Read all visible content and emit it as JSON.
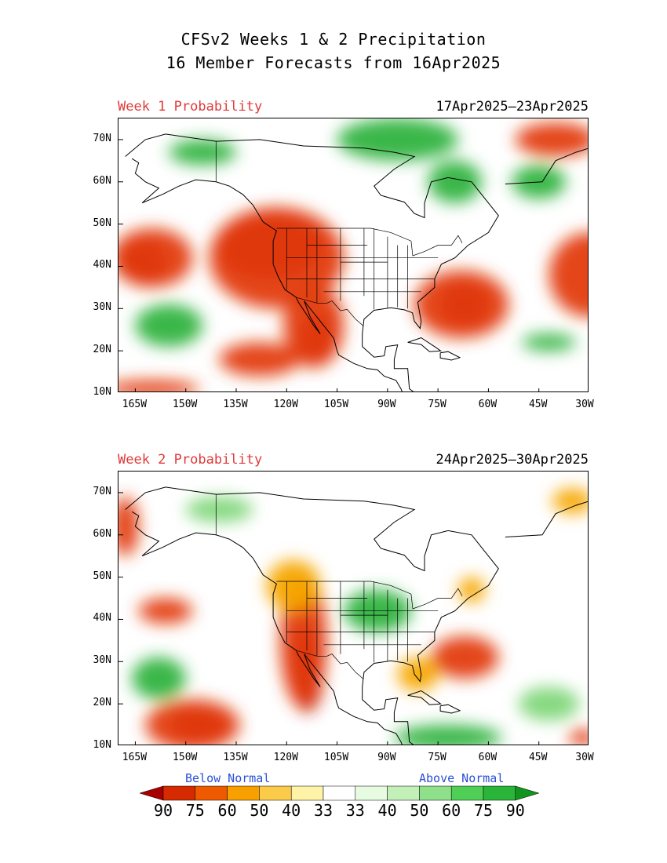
{
  "header": {
    "title_line1": "CFSv2 Weeks 1 & 2 Precipitation",
    "title_line2": "16 Member Forecasts from 16Apr2025"
  },
  "panels": [
    {
      "label": "Week 1 Probability",
      "dates": "17Apr2025—23Apr2025",
      "blobs": [
        {
          "c": "#b10000",
          "lon": -125,
          "lat": 45,
          "rx": 16,
          "ry": 8
        },
        {
          "c": "#e33c12",
          "lon": -123,
          "lat": 42,
          "rx": 20,
          "ry": 12
        },
        {
          "c": "#b10000",
          "lon": -163,
          "lat": 41,
          "rx": 7,
          "ry": 5
        },
        {
          "c": "#e33c12",
          "lon": -160,
          "lat": 42,
          "rx": 12,
          "ry": 7
        },
        {
          "c": "#b10000",
          "lon": -111,
          "lat": 23,
          "rx": 5,
          "ry": 6
        },
        {
          "c": "#e33c12",
          "lon": -112,
          "lat": 26,
          "rx": 9,
          "ry": 10
        },
        {
          "c": "#b10000",
          "lon": -67,
          "lat": 31,
          "rx": 7,
          "ry": 5
        },
        {
          "c": "#e33c12",
          "lon": -68,
          "lat": 31,
          "rx": 14,
          "ry": 8
        },
        {
          "c": "#e33c12",
          "lon": -30,
          "lat": 38,
          "rx": 12,
          "ry": 10
        },
        {
          "c": "#e33c12",
          "lon": -40,
          "lat": 70,
          "rx": 12,
          "ry": 4
        },
        {
          "c": "#e33c12",
          "lon": -128,
          "lat": 18,
          "rx": 12,
          "ry": 4
        },
        {
          "c": "#e33c12",
          "lon": -160,
          "lat": 11,
          "rx": 14,
          "ry": 2
        }
      ],
      "wet": [
        {
          "c": "#2fb33e",
          "lon": -155,
          "lat": 26,
          "rx": 10,
          "ry": 5
        },
        {
          "c": "#2fb33e",
          "lon": -87,
          "lat": 70,
          "rx": 18,
          "ry": 5
        },
        {
          "c": "#2fb33e",
          "lon": -70,
          "lat": 60,
          "rx": 8,
          "ry": 5
        },
        {
          "c": "#2fb33e",
          "lon": -145,
          "lat": 67,
          "rx": 10,
          "ry": 3
        },
        {
          "c": "#2fb33e",
          "lon": -45,
          "lat": 60,
          "rx": 8,
          "ry": 4
        },
        {
          "c": "#2fb33e",
          "lon": -42,
          "lat": 22,
          "rx": 8,
          "ry": 2
        }
      ]
    },
    {
      "label": "Week 2 Probability",
      "dates": "24Apr2025—30Apr2025",
      "blobs": [
        {
          "c": "#b10000",
          "lon": -114,
          "lat": 28,
          "rx": 5,
          "ry": 10
        },
        {
          "c": "#e33c12",
          "lon": -115,
          "lat": 35,
          "rx": 7,
          "ry": 16
        },
        {
          "c": "#b10000",
          "lon": -146,
          "lat": 15,
          "rx": 8,
          "ry": 4
        },
        {
          "c": "#e33c12",
          "lon": -148,
          "lat": 15,
          "rx": 14,
          "ry": 6
        },
        {
          "c": "#e33c12",
          "lon": -67,
          "lat": 31,
          "rx": 10,
          "ry": 5
        },
        {
          "c": "#e33c12",
          "lon": -156,
          "lat": 42,
          "rx": 8,
          "ry": 3
        },
        {
          "c": "#e33c12",
          "lon": -168,
          "lat": 62,
          "rx": 4,
          "ry": 7
        },
        {
          "c": "#f7a800",
          "lon": -118,
          "lat": 48,
          "rx": 8,
          "ry": 6
        },
        {
          "c": "#f7a800",
          "lon": -81,
          "lat": 27,
          "rx": 6,
          "ry": 4
        },
        {
          "c": "#f7a800",
          "lon": -65,
          "lat": 47,
          "rx": 4,
          "ry": 3
        },
        {
          "c": "#e33c12",
          "lon": -32,
          "lat": 12,
          "rx": 4,
          "ry": 2
        },
        {
          "c": "#f7a800",
          "lon": -35,
          "lat": 68,
          "rx": 6,
          "ry": 3
        }
      ],
      "wet": [
        {
          "c": "#2fb33e",
          "lon": -93,
          "lat": 42,
          "rx": 10,
          "ry": 5
        },
        {
          "c": "#2fb33e",
          "lon": -72,
          "lat": 12,
          "rx": 16,
          "ry": 3
        },
        {
          "c": "#2fb33e",
          "lon": -158,
          "lat": 26,
          "rx": 8,
          "ry": 5
        },
        {
          "c": "#7fd77a",
          "lon": -42,
          "lat": 20,
          "rx": 9,
          "ry": 4
        },
        {
          "c": "#7fd77a",
          "lon": -140,
          "lat": 66,
          "rx": 10,
          "ry": 3
        }
      ]
    }
  ],
  "map": {
    "lon_min": -170,
    "lon_max": -30,
    "lat_min": 10,
    "lat_max": 75,
    "lat_ticks": [
      "10N",
      "20N",
      "30N",
      "40N",
      "50N",
      "60N",
      "70N"
    ],
    "lon_ticks": [
      "165W",
      "150W",
      "135W",
      "120W",
      "105W",
      "90W",
      "75W",
      "60W",
      "45W",
      "30W"
    ]
  },
  "legend": {
    "below_label": "Below Normal",
    "above_label": "Above Normal",
    "numbers": [
      "90",
      "75",
      "60",
      "50",
      "40",
      "33",
      "33",
      "40",
      "50",
      "60",
      "75",
      "90"
    ],
    "colors": [
      "#a80000",
      "#d62b00",
      "#ef5a00",
      "#f7a000",
      "#fccb4a",
      "#fff3a8",
      "#ffffff",
      "#e6fbe0",
      "#c3f0b8",
      "#8fe08a",
      "#4fcf55",
      "#2ab53a",
      "#12951f"
    ]
  }
}
